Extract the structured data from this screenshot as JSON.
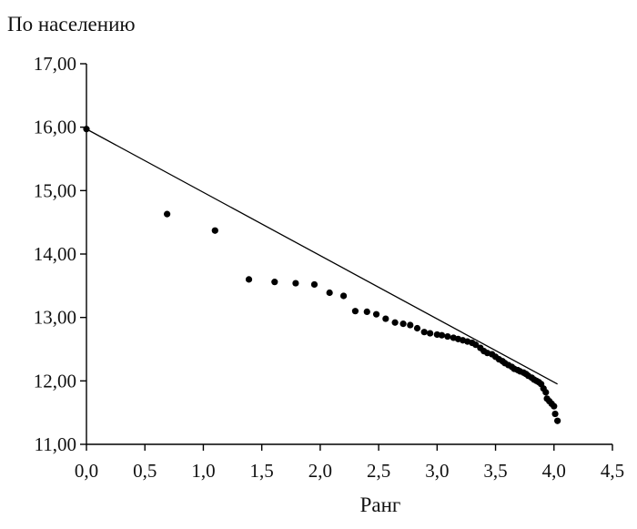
{
  "chart_data": {
    "type": "scatter",
    "title": "",
    "ylabel": "По населению",
    "xlabel": "Ранг",
    "xlim": [
      0,
      4.5
    ],
    "ylim": [
      11,
      17
    ],
    "grid": false,
    "x_ticks": [
      0,
      0.5,
      1,
      1.5,
      2,
      2.5,
      3,
      3.5,
      4,
      4.5
    ],
    "x_tick_labels": [
      "0,0",
      "0,5",
      "1,0",
      "1,5",
      "2,0",
      "2,5",
      "3,0",
      "3,5",
      "4,0",
      "4,5"
    ],
    "y_ticks": [
      11,
      12,
      13,
      14,
      15,
      16,
      17
    ],
    "y_tick_labels": [
      "11,00",
      "12,00",
      "13,00",
      "14,00",
      "15,00",
      "16,00",
      "17,00"
    ],
    "colors": {
      "points": "#000000",
      "trend": "#000000",
      "axis": "#000000"
    },
    "trendline": {
      "x": [
        0,
        4.03
      ],
      "y": [
        15.97,
        11.95
      ]
    },
    "series": [
      {
        "name": "По населению",
        "x": [
          0.0,
          0.69,
          1.1,
          1.39,
          1.61,
          1.79,
          1.95,
          2.08,
          2.2,
          2.3,
          2.4,
          2.48,
          2.56,
          2.64,
          2.71,
          2.77,
          2.83,
          2.89,
          2.94,
          3.0,
          3.04,
          3.09,
          3.14,
          3.18,
          3.22,
          3.26,
          3.3,
          3.33,
          3.37,
          3.4,
          3.43,
          3.47,
          3.5,
          3.53,
          3.56,
          3.58,
          3.61,
          3.64,
          3.66,
          3.69,
          3.71,
          3.74,
          3.76,
          3.78,
          3.81,
          3.83,
          3.85,
          3.87,
          3.89,
          3.91,
          3.93,
          3.94,
          3.96,
          3.98,
          4.0,
          4.01,
          4.03
        ],
        "y": [
          15.97,
          14.63,
          14.37,
          13.6,
          13.56,
          13.54,
          13.52,
          13.39,
          13.34,
          13.1,
          13.09,
          13.05,
          12.98,
          12.92,
          12.9,
          12.88,
          12.83,
          12.77,
          12.75,
          12.73,
          12.72,
          12.7,
          12.68,
          12.66,
          12.64,
          12.62,
          12.6,
          12.57,
          12.52,
          12.47,
          12.44,
          12.42,
          12.38,
          12.34,
          12.31,
          12.28,
          12.25,
          12.22,
          12.19,
          12.17,
          12.15,
          12.13,
          12.11,
          12.08,
          12.05,
          12.02,
          12.0,
          11.98,
          11.95,
          11.88,
          11.82,
          11.72,
          11.68,
          11.64,
          11.6,
          11.48,
          11.37
        ]
      }
    ]
  }
}
